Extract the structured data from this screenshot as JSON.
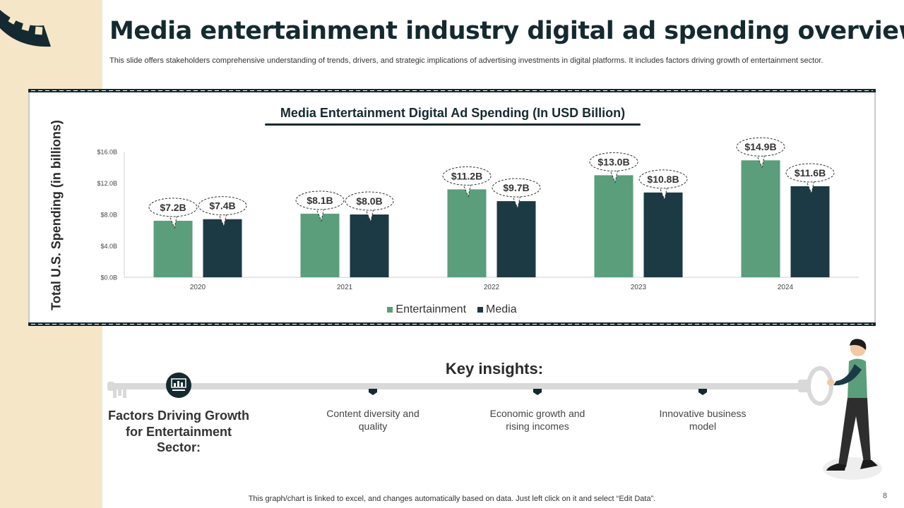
{
  "title": "Media entertainment industry digital ad spending overview",
  "subtitle": "This slide offers stakeholders comprehensive understanding of trends, drivers, and strategic implications of advertising investments in digital platforms. It includes factors driving growth of entertainment sector.",
  "chart_data": {
    "type": "bar",
    "title": "Media Entertainment Digital Ad Spending (In USD Billion)",
    "xlabel": "",
    "ylabel": "Total U.S. Spending (in billions)",
    "categories": [
      "2020",
      "2021",
      "2022",
      "2023",
      "2024"
    ],
    "ylim": [
      0,
      16
    ],
    "yticks": [
      0,
      4,
      8,
      12,
      16
    ],
    "ytick_labels": [
      "$0.0B",
      "$4.0B",
      "$8.0B",
      "$12.0B",
      "$16.0B"
    ],
    "series": [
      {
        "name": "Entertainment",
        "values": [
          7.2,
          8.1,
          11.2,
          13.0,
          14.9
        ],
        "labels": [
          "$7.2B",
          "$8.1B",
          "$11.2B",
          "$13.0B",
          "$14.9B"
        ],
        "color": "#5a9e7c"
      },
      {
        "name": "Media",
        "values": [
          7.4,
          8.0,
          9.7,
          10.8,
          11.6
        ],
        "labels": [
          "$7.4B",
          "$8.0B",
          "$9.7B",
          "$10.8B",
          "$11.6B"
        ],
        "color": "#1b3a44"
      }
    ],
    "legend_position": "bottom",
    "grid": false
  },
  "insights": {
    "title": "Key insights:",
    "factors_heading": "Factors Driving Growth for Entertainment Sector:",
    "items": [
      "Content diversity and quality",
      "Economic growth and rising incomes",
      "Innovative business model"
    ]
  },
  "footer": "This graph/chart is linked to excel, and changes automatically based on data. Just left click on it and select “Edit Data”.",
  "page_number": "8",
  "colors": {
    "accent": "#142a30",
    "sidebar": "#f5e6c8",
    "green": "#5a9e7c",
    "dark": "#1b3a44"
  }
}
